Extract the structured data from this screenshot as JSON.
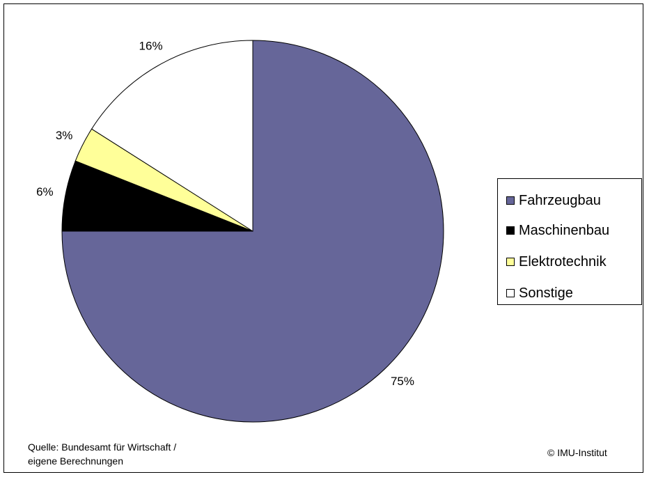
{
  "chart_data": {
    "type": "pie",
    "title": "",
    "categories": [
      "Fahrzeugbau",
      "Maschinenbau",
      "Elektrotechnik",
      "Sonstige"
    ],
    "values": [
      75,
      6,
      3,
      16
    ],
    "data_labels": [
      "75%",
      "6%",
      "3%",
      "16%"
    ],
    "colors": [
      "#666699",
      "#000000",
      "#ffff99",
      "#ffffff"
    ],
    "legend_position": "right"
  },
  "legend": {
    "items": [
      {
        "label": "Fahrzeugbau"
      },
      {
        "label": "Maschinenbau"
      },
      {
        "label": "Elektrotechnik"
      },
      {
        "label": "Sonstige"
      }
    ]
  },
  "footer": {
    "source_line1": "Quelle: Bundesamt für Wirtschaft /",
    "source_line2": "eigene Berechnungen",
    "copyright": "© IMU-Institut"
  }
}
